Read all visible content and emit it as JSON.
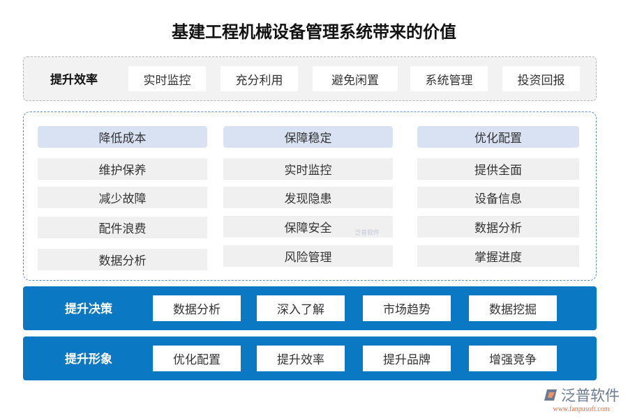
{
  "title": "基建工程机械设备管理系统带来的价值",
  "efficiency": {
    "label": "提升效率",
    "items": [
      "实时监控",
      "充分利用",
      "避免闲置",
      "系统管理",
      "投资回报"
    ]
  },
  "columns": [
    {
      "header": "降低成本",
      "items": [
        "维护保养",
        "减少故障",
        "配件浪费",
        "数据分析"
      ]
    },
    {
      "header": "保障稳定",
      "items": [
        "实时监控",
        "发现隐患",
        "保障安全",
        "风险管理"
      ]
    },
    {
      "header": "优化配置",
      "items": [
        "提供全面",
        "设备信息",
        "数据分析",
        "掌握进度"
      ]
    }
  ],
  "decision": {
    "label": "提升决策",
    "items": [
      "数据分析",
      "深入了解",
      "市场趋势",
      "数据挖掘"
    ]
  },
  "image": {
    "label": "提升形象",
    "items": [
      "优化配置",
      "提升效率",
      "提升品牌",
      "增强竞争"
    ]
  },
  "logo": {
    "name": "泛普软件",
    "url": "www.fanpusoft.com"
  },
  "colors": {
    "bar": "#0a78c2",
    "header": "#d9e2f3",
    "cell": "#f0f0f0"
  }
}
